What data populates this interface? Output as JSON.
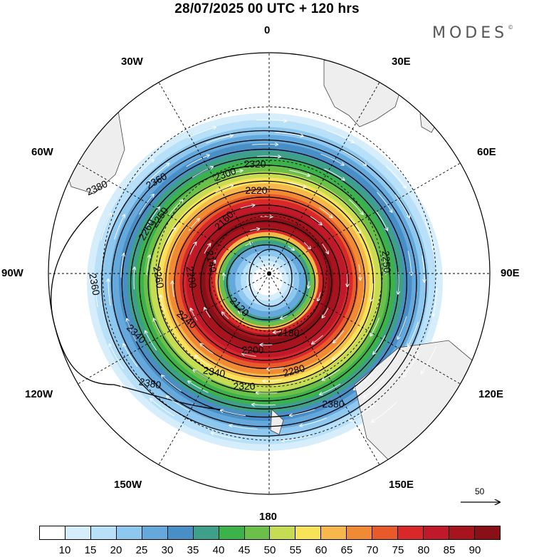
{
  "title": "28/07/2025  00 UTC  + 120 hrs",
  "brand": {
    "text": "MODES",
    "mark": "©"
  },
  "longitude_labels": {
    "n0": "0",
    "e30": "30E",
    "e60": "60E",
    "e90": "90E",
    "e120": "120E",
    "e150": "150E",
    "s180": "180",
    "w150": "150W",
    "w120": "120W",
    "w90": "90W",
    "w60": "60W",
    "w30": "30W"
  },
  "contours": [
    {
      "label": "2380"
    },
    {
      "label": "2360"
    },
    {
      "label": "2340"
    },
    {
      "label": "2320"
    },
    {
      "label": "2300"
    },
    {
      "label": "2280"
    },
    {
      "label": "2260"
    },
    {
      "label": "2240"
    },
    {
      "label": "2220"
    },
    {
      "label": "2200"
    },
    {
      "label": "2180"
    },
    {
      "label": "2160"
    },
    {
      "label": "2140"
    }
  ],
  "contour_labels_shown": [
    "2380",
    "2380",
    "2380",
    "2360",
    "2360",
    "2340",
    "2340",
    "2320",
    "2320",
    "2300",
    "2280",
    "2260",
    "2260",
    "2250",
    "2250",
    "2240",
    "2220",
    "2200",
    "2200",
    "2180",
    "2160",
    "2140",
    "2120"
  ],
  "reference_vector": {
    "value": "50"
  },
  "colorbar": {
    "colors": [
      "#ffffff",
      "#d6eefc",
      "#b8e0f8",
      "#8ec8ef",
      "#64a8dc",
      "#4a8ec6",
      "#3fa08a",
      "#3cb24a",
      "#6cc04a",
      "#c6dc52",
      "#f7e25a",
      "#f6b84a",
      "#f08a34",
      "#e85a2a",
      "#d8282a",
      "#c01a2a",
      "#a8141e",
      "#8a1018"
    ],
    "labels": [
      "10",
      "15",
      "20",
      "25",
      "30",
      "35",
      "40",
      "45",
      "50",
      "55",
      "60",
      "65",
      "70",
      "75",
      "80",
      "85",
      "90"
    ]
  }
}
